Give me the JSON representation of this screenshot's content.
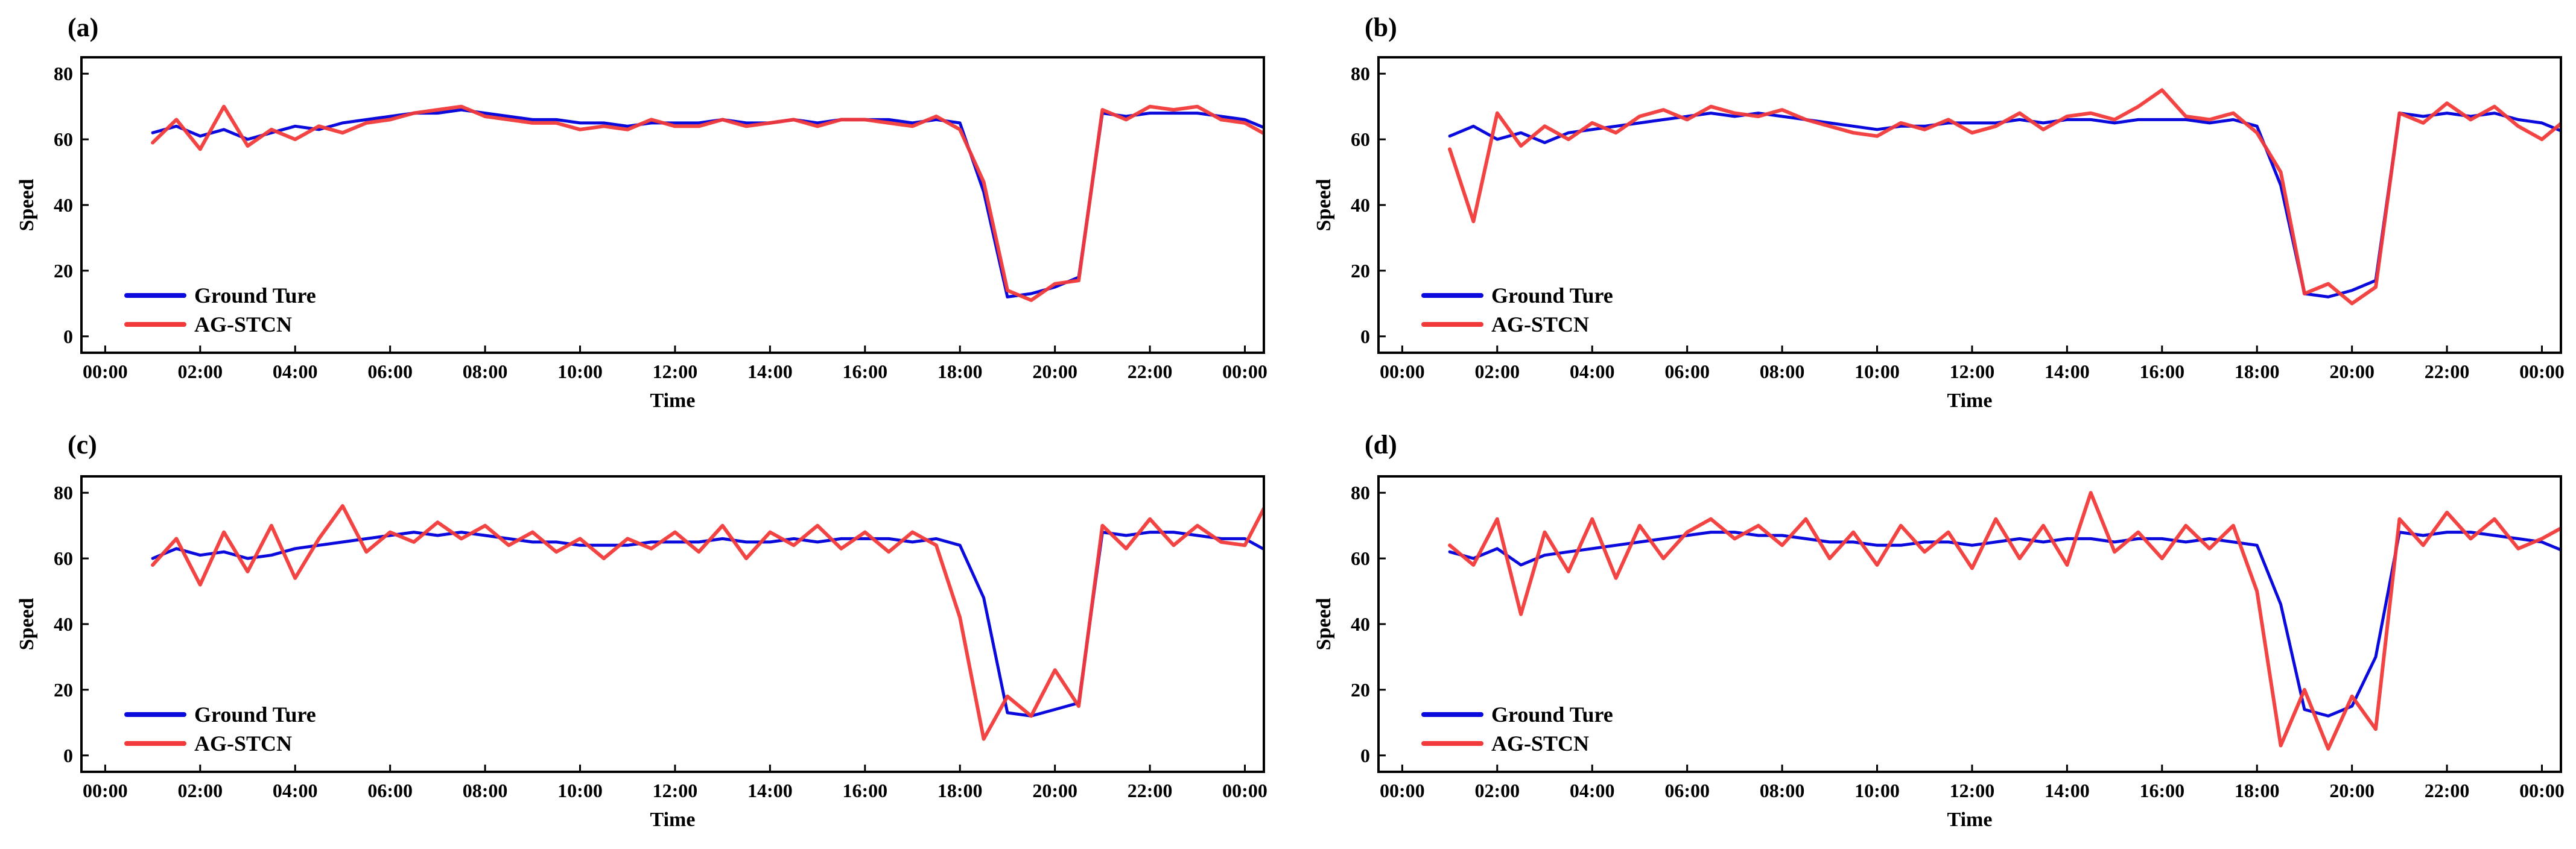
{
  "figure": {
    "colors": {
      "ground_truth": "#0a0adc",
      "prediction": "#f23a3a",
      "axis": "#000000"
    }
  },
  "chart_data": [
    {
      "type": "line",
      "panel": "(a)",
      "xlabel": "Time",
      "ylabel": "Speed",
      "xticks": [
        "00:00",
        "02:00",
        "04:00",
        "06:00",
        "08:00",
        "10:00",
        "12:00",
        "14:00",
        "16:00",
        "18:00",
        "20:00",
        "22:00",
        "00:00"
      ],
      "yticks": [
        "0",
        "20",
        "40",
        "60",
        "80"
      ],
      "xlim": [
        -0.5,
        24.4
      ],
      "ylim": [
        -5,
        85
      ],
      "legend": {
        "position": "lower-left",
        "entries": [
          "Ground Ture",
          "AG-STCN"
        ]
      },
      "series": [
        {
          "name": "Ground Ture",
          "color": "#0a0adc",
          "x_start": 1.0,
          "x_step": 0.5,
          "values": [
            62,
            64,
            61,
            63,
            60,
            62,
            64,
            63,
            65,
            66,
            67,
            68,
            68,
            69,
            68,
            67,
            66,
            66,
            65,
            65,
            64,
            65,
            65,
            65,
            66,
            65,
            65,
            66,
            65,
            66,
            66,
            66,
            65,
            66,
            65,
            44,
            12,
            13,
            15,
            18,
            68,
            67,
            68,
            68,
            68,
            67,
            66,
            63
          ]
        },
        {
          "name": "AG-STCN",
          "color": "#f23a3a",
          "x_start": 1.0,
          "x_step": 0.5,
          "values": [
            59,
            66,
            57,
            70,
            58,
            63,
            60,
            64,
            62,
            65,
            66,
            68,
            69,
            70,
            67,
            66,
            65,
            65,
            63,
            64,
            63,
            66,
            64,
            64,
            66,
            64,
            65,
            66,
            64,
            66,
            66,
            65,
            64,
            67,
            63,
            47,
            14,
            11,
            16,
            17,
            69,
            66,
            70,
            69,
            70,
            66,
            65,
            61
          ]
        }
      ]
    },
    {
      "type": "line",
      "panel": "(b)",
      "xlabel": "Time",
      "ylabel": "Speed",
      "xticks": [
        "00:00",
        "02:00",
        "04:00",
        "06:00",
        "08:00",
        "10:00",
        "12:00",
        "14:00",
        "16:00",
        "18:00",
        "20:00",
        "22:00",
        "00:00"
      ],
      "yticks": [
        "0",
        "20",
        "40",
        "60",
        "80"
      ],
      "xlim": [
        -0.5,
        24.4
      ],
      "ylim": [
        -5,
        85
      ],
      "legend": {
        "position": "lower-left",
        "entries": [
          "Ground Ture",
          "AG-STCN"
        ]
      },
      "series": [
        {
          "name": "Ground Ture",
          "color": "#0a0adc",
          "x_start": 1.0,
          "x_step": 0.5,
          "values": [
            61,
            64,
            60,
            62,
            59,
            62,
            63,
            64,
            65,
            66,
            67,
            68,
            67,
            68,
            67,
            66,
            65,
            64,
            63,
            64,
            64,
            65,
            65,
            65,
            66,
            65,
            66,
            66,
            65,
            66,
            66,
            66,
            65,
            66,
            64,
            46,
            13,
            12,
            14,
            17,
            68,
            67,
            68,
            67,
            68,
            66,
            65,
            62
          ]
        },
        {
          "name": "AG-STCN",
          "color": "#f23a3a",
          "x_start": 1.0,
          "x_step": 0.5,
          "values": [
            57,
            35,
            68,
            58,
            64,
            60,
            65,
            62,
            67,
            69,
            66,
            70,
            68,
            67,
            69,
            66,
            64,
            62,
            61,
            65,
            63,
            66,
            62,
            64,
            68,
            63,
            67,
            68,
            66,
            70,
            75,
            67,
            66,
            68,
            62,
            50,
            13,
            16,
            10,
            15,
            68,
            65,
            71,
            66,
            70,
            64,
            60,
            66
          ]
        }
      ]
    },
    {
      "type": "line",
      "panel": "(c)",
      "xlabel": "Time",
      "ylabel": "Speed",
      "xticks": [
        "00:00",
        "02:00",
        "04:00",
        "06:00",
        "08:00",
        "10:00",
        "12:00",
        "14:00",
        "16:00",
        "18:00",
        "20:00",
        "22:00",
        "00:00"
      ],
      "yticks": [
        "0",
        "20",
        "40",
        "60",
        "80"
      ],
      "xlim": [
        -0.5,
        24.4
      ],
      "ylim": [
        -5,
        85
      ],
      "legend": {
        "position": "lower-left",
        "entries": [
          "Ground Ture",
          "AG-STCN"
        ]
      },
      "series": [
        {
          "name": "Ground Ture",
          "color": "#0a0adc",
          "x_start": 1.0,
          "x_step": 0.5,
          "values": [
            60,
            63,
            61,
            62,
            60,
            61,
            63,
            64,
            65,
            66,
            67,
            68,
            67,
            68,
            67,
            66,
            65,
            65,
            64,
            64,
            64,
            65,
            65,
            65,
            66,
            65,
            65,
            66,
            65,
            66,
            66,
            66,
            65,
            66,
            64,
            48,
            13,
            12,
            14,
            16,
            68,
            67,
            68,
            68,
            67,
            66,
            66,
            62
          ]
        },
        {
          "name": "AG-STCN",
          "color": "#f23a3a",
          "x_start": 1.0,
          "x_step": 0.5,
          "values": [
            58,
            66,
            52,
            68,
            56,
            70,
            54,
            66,
            76,
            62,
            68,
            65,
            71,
            66,
            70,
            64,
            68,
            62,
            66,
            60,
            66,
            63,
            68,
            62,
            70,
            60,
            68,
            64,
            70,
            63,
            68,
            62,
            68,
            64,
            42,
            5,
            18,
            12,
            26,
            15,
            70,
            63,
            72,
            64,
            70,
            65,
            64,
            78
          ]
        }
      ]
    },
    {
      "type": "line",
      "panel": "(d)",
      "xlabel": "Time",
      "ylabel": "Speed",
      "xticks": [
        "00:00",
        "02:00",
        "04:00",
        "06:00",
        "08:00",
        "10:00",
        "12:00",
        "14:00",
        "16:00",
        "18:00",
        "20:00",
        "22:00",
        "00:00"
      ],
      "yticks": [
        "0",
        "20",
        "40",
        "60",
        "80"
      ],
      "xlim": [
        -0.5,
        24.4
      ],
      "ylim": [
        -5,
        85
      ],
      "legend": {
        "position": "lower-left",
        "entries": [
          "Ground Ture",
          "AG-STCN"
        ]
      },
      "series": [
        {
          "name": "Ground Ture",
          "color": "#0a0adc",
          "x_start": 1.0,
          "x_step": 0.5,
          "values": [
            62,
            60,
            63,
            58,
            61,
            62,
            63,
            64,
            65,
            66,
            67,
            68,
            68,
            67,
            67,
            66,
            65,
            65,
            64,
            64,
            65,
            65,
            64,
            65,
            66,
            65,
            66,
            66,
            65,
            66,
            66,
            65,
            66,
            65,
            64,
            46,
            14,
            12,
            15,
            30,
            68,
            67,
            68,
            68,
            67,
            66,
            65,
            62
          ]
        },
        {
          "name": "AG-STCN",
          "color": "#f23a3a",
          "x_start": 1.0,
          "x_step": 0.5,
          "values": [
            64,
            58,
            72,
            43,
            68,
            56,
            72,
            54,
            70,
            60,
            68,
            72,
            66,
            70,
            64,
            72,
            60,
            68,
            58,
            70,
            62,
            68,
            57,
            72,
            60,
            70,
            58,
            80,
            62,
            68,
            60,
            70,
            63,
            70,
            50,
            3,
            20,
            2,
            18,
            8,
            72,
            64,
            74,
            66,
            72,
            63,
            66,
            70
          ]
        }
      ]
    }
  ]
}
